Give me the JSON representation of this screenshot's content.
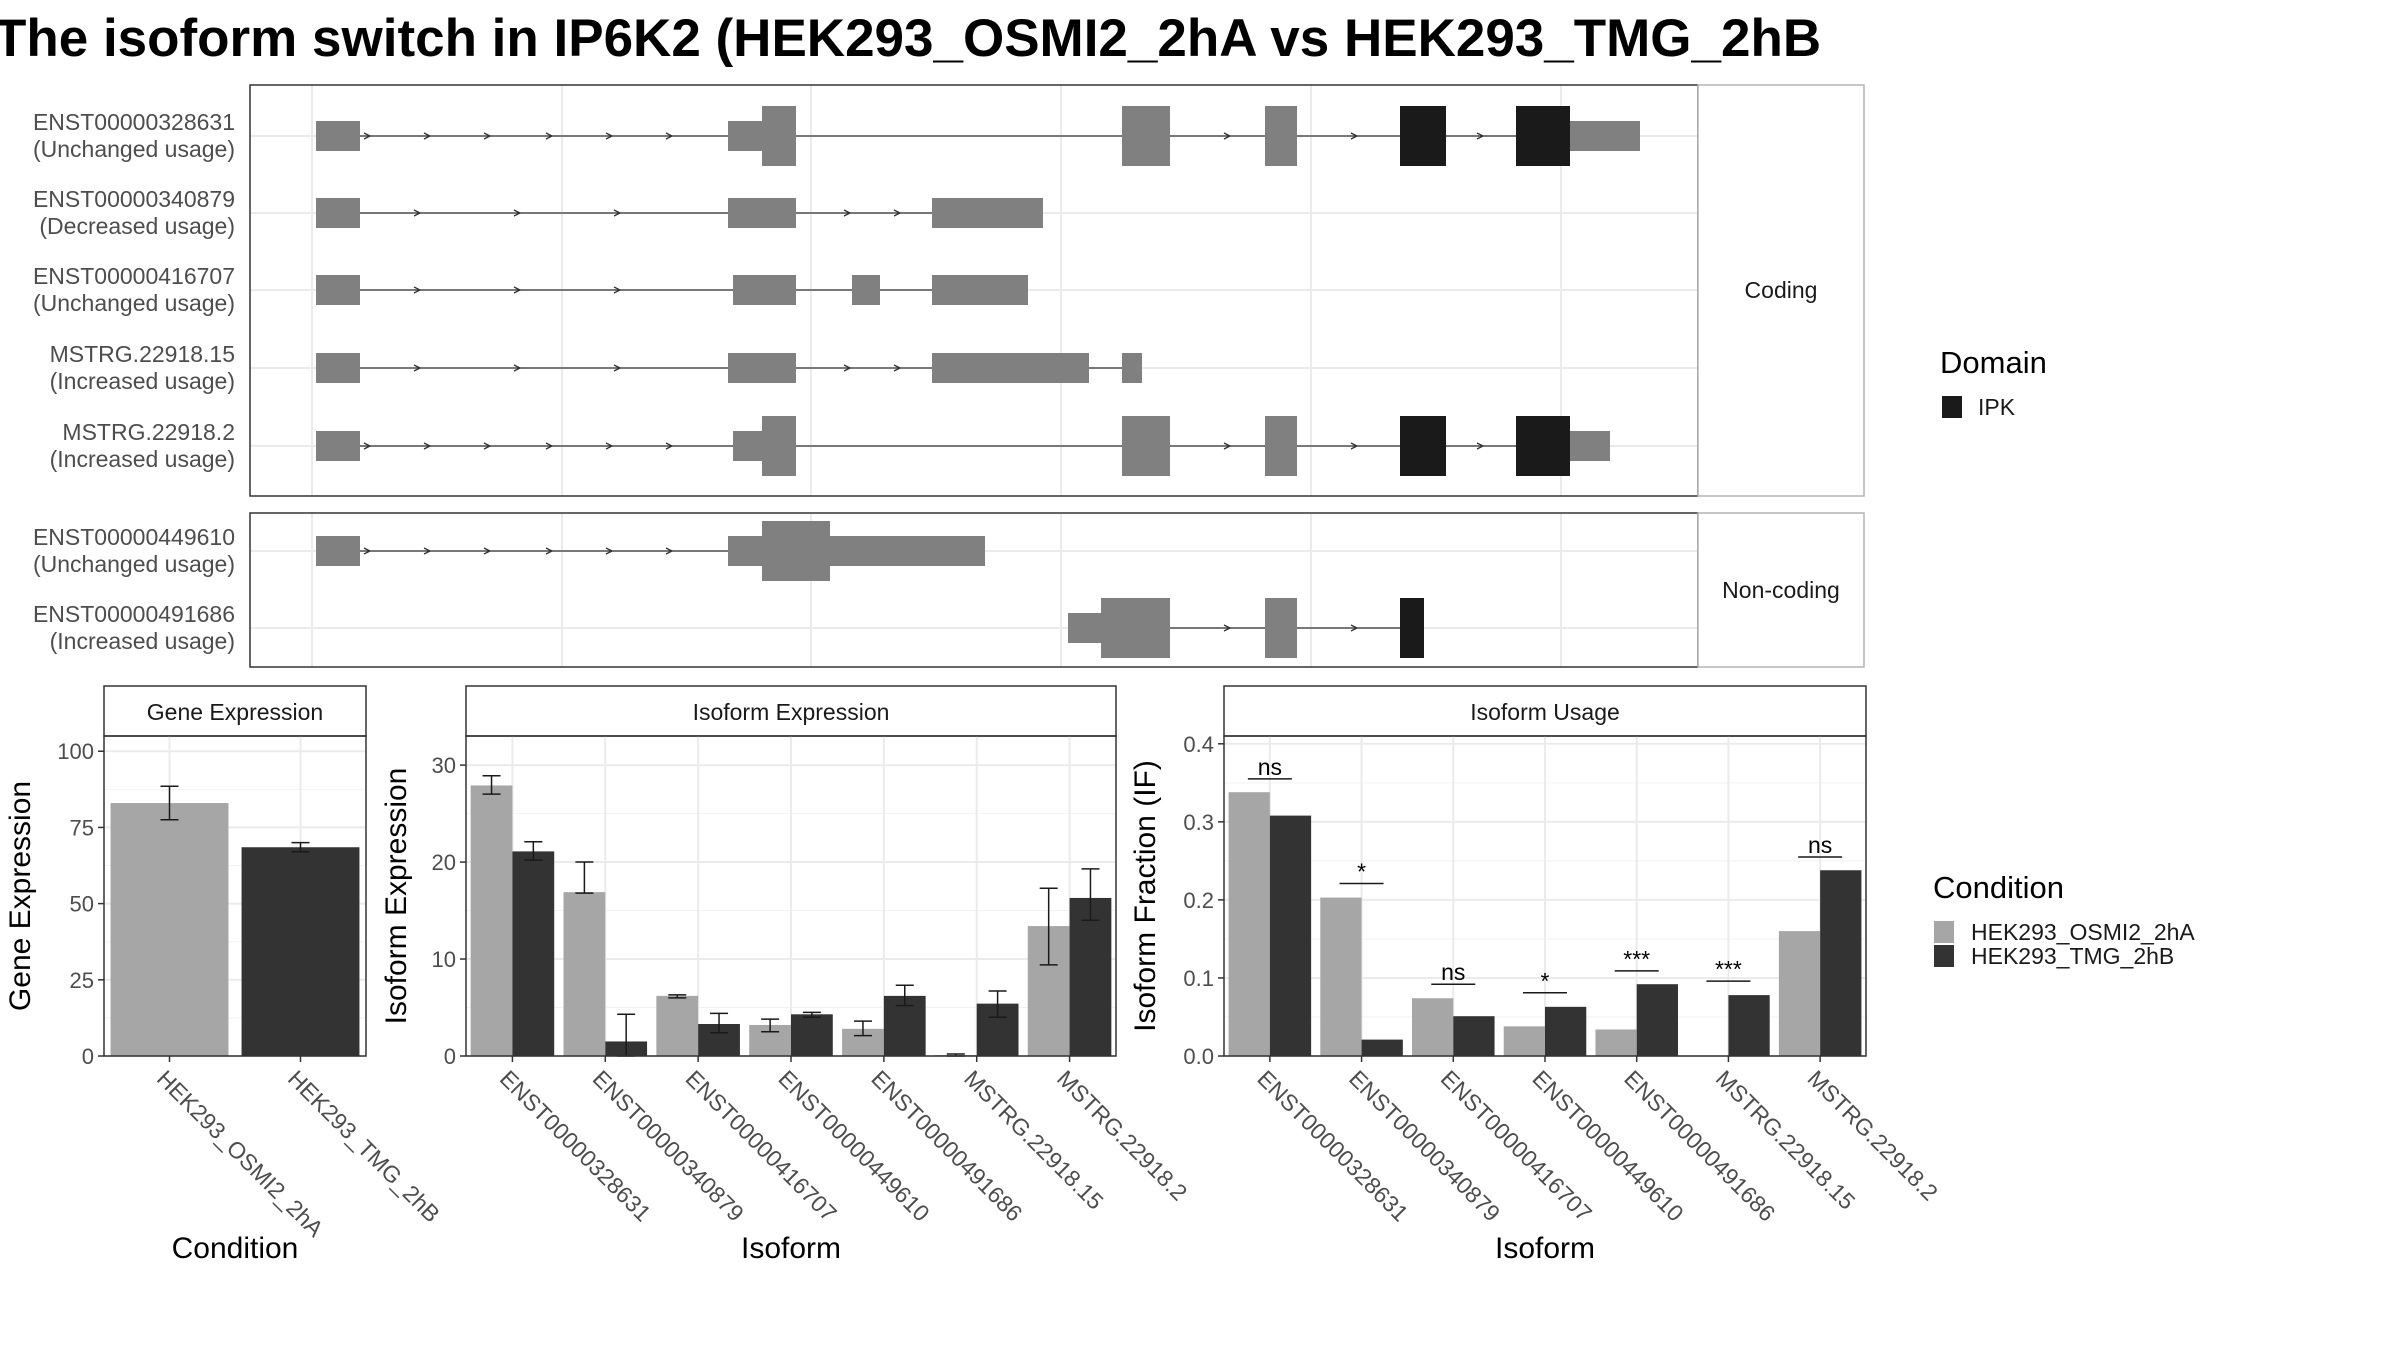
{
  "title": "The isoform switch in IP6K2 (HEK293_OSMI2_2hA vs HEK293_TMG_2hB",
  "structure": {
    "groups": [
      {
        "label": "Coding",
        "isoforms": [
          {
            "id": "ENST00000328631",
            "usage": "(Unchanged usage)"
          },
          {
            "id": "ENST00000340879",
            "usage": "(Decreased usage)"
          },
          {
            "id": "ENST00000416707",
            "usage": "(Unchanged usage)"
          },
          {
            "id": "MSTRG.22918.15",
            "usage": "(Increased usage)"
          },
          {
            "id": "MSTRG.22918.2",
            "usage": "(Increased usage)"
          }
        ]
      },
      {
        "label": "Non-coding",
        "isoforms": [
          {
            "id": "ENST00000449610",
            "usage": "(Unchanged usage)"
          },
          {
            "id": "ENST00000491686",
            "usage": "(Increased usage)"
          }
        ]
      }
    ],
    "colors": {
      "exon": "#808080",
      "domain": "#1a1a1a",
      "line": "#333333",
      "grid": "#ebebeb"
    }
  },
  "domain_legend": {
    "title": "Domain",
    "items": [
      {
        "label": "IPK",
        "color": "#1a1a1a"
      }
    ]
  },
  "condition_legend": {
    "title": "Condition",
    "items": [
      {
        "label": "HEK293_OSMI2_2hA",
        "color": "#a6a6a6"
      },
      {
        "label": "HEK293_TMG_2hB",
        "color": "#333333"
      }
    ]
  },
  "chart_data": [
    {
      "type": "bar",
      "title": "Gene Expression",
      "xlabel": "Condition",
      "ylabel": "Gene Expression",
      "ylim": [
        0,
        105
      ],
      "yticks": [
        0,
        25,
        50,
        75,
        100
      ],
      "categories": [
        "HEK293_OSMI2_2hA",
        "HEK293_TMG_2hB"
      ],
      "values": [
        83,
        68.5
      ],
      "errors": [
        [
          77.5,
          88.5
        ],
        [
          67,
          70
        ]
      ],
      "colors": [
        "#a6a6a6",
        "#333333"
      ]
    },
    {
      "type": "bar",
      "title": "Isoform Expression",
      "xlabel": "Isoform",
      "ylabel": "Isoform Expression",
      "ylim": [
        0,
        33
      ],
      "yticks": [
        0,
        10,
        20,
        30
      ],
      "categories": [
        "ENST00000328631",
        "ENST00000340879",
        "ENST00000416707",
        "ENST00000449610",
        "ENST00000491686",
        "MSTRG.22918.15",
        "MSTRG.22918.2"
      ],
      "series": [
        {
          "name": "HEK293_OSMI2_2hA",
          "values": [
            27.9,
            16.9,
            6.2,
            3.2,
            2.8,
            0.1,
            13.4
          ],
          "errors": [
            [
              27,
              28.9
            ],
            [
              16.8,
              20
            ],
            [
              6,
              6.3
            ],
            [
              2.5,
              3.8
            ],
            [
              2.1,
              3.6
            ],
            [
              0,
              0.2
            ],
            [
              9.4,
              17.3
            ]
          ]
        },
        {
          "name": "HEK293_TMG_2hB",
          "values": [
            21.1,
            1.5,
            3.3,
            4.3,
            6.2,
            5.4,
            16.3
          ],
          "errors": [
            [
              20.2,
              22.1
            ],
            [
              0,
              4.3
            ],
            [
              2.4,
              4.4
            ],
            [
              4,
              4.5
            ],
            [
              5.2,
              7.3
            ],
            [
              4,
              6.7
            ],
            [
              14,
              19.3
            ]
          ]
        }
      ]
    },
    {
      "type": "bar",
      "title": "Isoform Usage",
      "xlabel": "Isoform",
      "ylabel": "Isoform Fraction (IF)",
      "ylim": [
        0,
        0.41
      ],
      "yticks": [
        0.0,
        0.1,
        0.2,
        0.3,
        0.4
      ],
      "ytick_labels": [
        "0.0",
        "0.1",
        "0.2",
        "0.3",
        "0.4"
      ],
      "categories": [
        "ENST00000328631",
        "ENST00000340879",
        "ENST00000416707",
        "ENST00000449610",
        "ENST00000491686",
        "MSTRG.22918.15",
        "MSTRG.22918.2"
      ],
      "series": [
        {
          "name": "HEK293_OSMI2_2hA",
          "values": [
            0.338,
            0.203,
            0.074,
            0.038,
            0.034,
            0.0,
            0.16
          ]
        },
        {
          "name": "HEK293_TMG_2hB",
          "values": [
            0.308,
            0.021,
            0.051,
            0.063,
            0.092,
            0.078,
            0.238
          ]
        }
      ],
      "annotations": [
        {
          "category": "ENST00000328631",
          "label": "ns",
          "y": 0.355
        },
        {
          "category": "ENST00000340879",
          "label": "*",
          "y": 0.221
        },
        {
          "category": "ENST00000416707",
          "label": "ns",
          "y": 0.092
        },
        {
          "category": "ENST00000449610",
          "label": "*",
          "y": 0.081
        },
        {
          "category": "ENST00000491686",
          "label": "***",
          "y": 0.109
        },
        {
          "category": "MSTRG.22918.15",
          "label": "***",
          "y": 0.096
        },
        {
          "category": "MSTRG.22918.2",
          "label": "ns",
          "y": 0.255
        }
      ]
    }
  ]
}
